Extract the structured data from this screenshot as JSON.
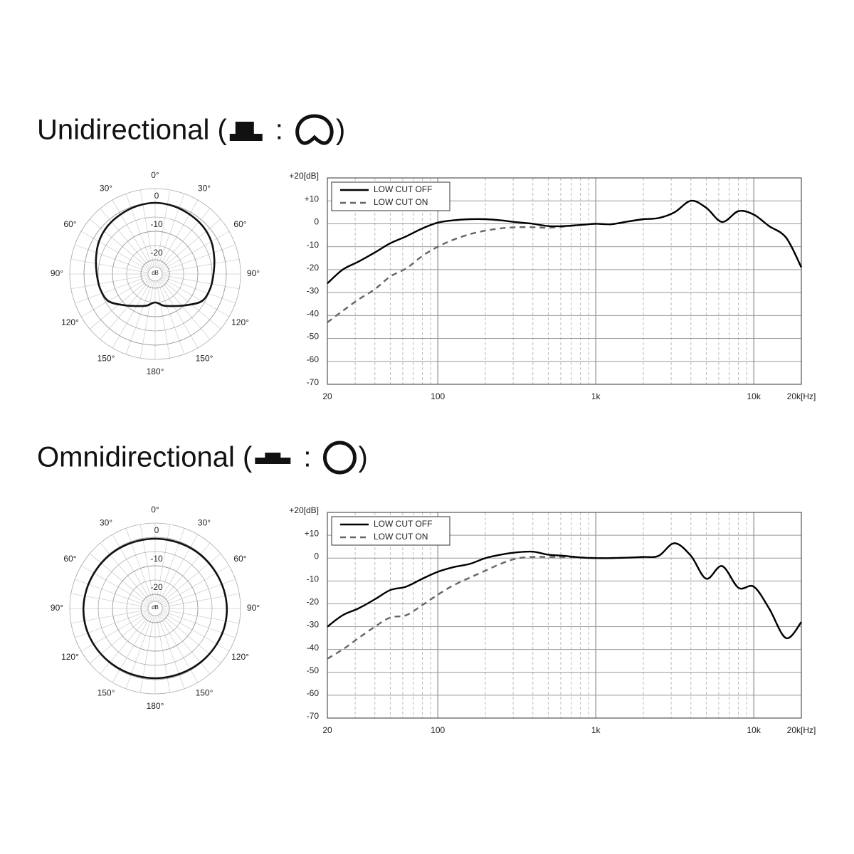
{
  "headings": [
    {
      "text": "Unidirectional (",
      "separator": ":",
      "close": ")"
    },
    {
      "text": "Omnidirectional (",
      "separator": ":",
      "close": ")"
    }
  ],
  "chart_data": [
    {
      "type": "polar",
      "rlim": [
        -25,
        5
      ],
      "rticks": [
        0,
        -10,
        -20
      ],
      "rminor": [
        5,
        -5,
        -15
      ],
      "runit": "dB",
      "spoke_step": 10,
      "angle_ticks": [
        {
          "value": 0,
          "label": "0°"
        },
        {
          "value": 30,
          "label": "30°"
        },
        {
          "value": 60,
          "label": "60°"
        },
        {
          "value": 90,
          "label": "90°"
        },
        {
          "value": 120,
          "label": "120°"
        },
        {
          "value": 150,
          "label": "150°"
        },
        {
          "value": 180,
          "label": "180°"
        },
        {
          "value": 210,
          "label": "150°"
        },
        {
          "value": 240,
          "label": "120°"
        },
        {
          "value": 270,
          "label": "90°"
        },
        {
          "value": 300,
          "label": "60°"
        },
        {
          "value": 330,
          "label": "30°"
        }
      ],
      "angles": [
        0,
        15,
        30,
        45,
        60,
        75,
        90,
        105,
        120,
        135,
        150,
        165,
        180,
        195,
        210,
        225,
        240,
        255,
        270,
        285,
        300,
        315,
        330,
        345
      ],
      "values": [
        0,
        -0.3,
        -0.8,
        -1.3,
        -2.2,
        -3.5,
        -4.5,
        -5,
        -6,
        -9.5,
        -12,
        -13.5,
        -15,
        -13.5,
        -12,
        -9.5,
        -6,
        -5,
        -4.5,
        -3.5,
        -2.2,
        -1.3,
        -0.8,
        -0.3
      ],
      "color": "#111111"
    },
    {
      "type": "line",
      "xscale": "log",
      "xlim": [
        20,
        20000
      ],
      "ylim": [
        -70,
        20
      ],
      "xticks": [
        20,
        100,
        {
          "value": 1000,
          "label": "1k"
        },
        {
          "value": 10000,
          "label": "10k"
        },
        {
          "value": 20000,
          "label": "20k[Hz]"
        }
      ],
      "xmajor": [
        100,
        1000,
        10000
      ],
      "xminor": [
        30,
        40,
        50,
        60,
        70,
        80,
        90,
        200,
        300,
        400,
        500,
        600,
        700,
        800,
        900,
        2000,
        3000,
        4000,
        5000,
        6000,
        7000,
        8000,
        9000
      ],
      "yticks": [
        {
          "value": 20,
          "label": "+20[dB]"
        },
        {
          "value": 10,
          "label": "+10"
        },
        0,
        -10,
        -20,
        -30,
        -40,
        -50,
        -60,
        -70
      ],
      "grid": true,
      "legend": "upper left",
      "x": [
        20,
        25,
        31.5,
        40,
        50,
        63,
        80,
        100,
        125,
        160,
        200,
        250,
        315,
        400,
        500,
        630,
        800,
        1000,
        1250,
        1600,
        2000,
        2500,
        3150,
        4000,
        5000,
        6300,
        8000,
        10000,
        12500,
        16000,
        20000
      ],
      "series": [
        {
          "name": "LOW CUT OFF",
          "color": "#000000",
          "dashed": false,
          "values": [
            -26,
            -20,
            -16.5,
            -12.5,
            -8.5,
            -5.5,
            -2,
            0.5,
            1.5,
            2,
            2,
            1.5,
            0.7,
            0,
            -1,
            -1,
            -0.5,
            0,
            -0.2,
            1,
            2,
            2.5,
            5,
            10,
            7,
            0.8,
            5.5,
            4,
            -1,
            -6,
            -19
          ]
        },
        {
          "name": "LOW CUT ON",
          "color": "#666666",
          "dashed": true,
          "values": [
            -43,
            -38,
            -33,
            -28.5,
            -23,
            -19.5,
            -14,
            -10,
            -7,
            -4.5,
            -3,
            -2,
            -1.5,
            -1.5,
            -1.7,
            -1.2,
            -0.5,
            0,
            -0.2,
            1,
            2,
            2.5,
            5,
            10,
            7,
            0.8,
            5.5,
            4,
            -1,
            -6,
            -19
          ]
        }
      ]
    },
    {
      "type": "polar",
      "rlim": [
        -25,
        5
      ],
      "rticks": [
        0,
        -10,
        -20
      ],
      "rminor": [
        5,
        -5,
        -15
      ],
      "runit": "dB",
      "spoke_step": 10,
      "angle_ticks": [
        {
          "value": 0,
          "label": "0°"
        },
        {
          "value": 30,
          "label": "30°"
        },
        {
          "value": 60,
          "label": "60°"
        },
        {
          "value": 90,
          "label": "90°"
        },
        {
          "value": 120,
          "label": "120°"
        },
        {
          "value": 150,
          "label": "150°"
        },
        {
          "value": 180,
          "label": "180°"
        },
        {
          "value": 210,
          "label": "150°"
        },
        {
          "value": 240,
          "label": "120°"
        },
        {
          "value": 270,
          "label": "90°"
        },
        {
          "value": 300,
          "label": "60°"
        },
        {
          "value": 330,
          "label": "30°"
        }
      ],
      "angles": [
        0,
        15,
        30,
        45,
        60,
        75,
        90,
        105,
        120,
        135,
        150,
        165,
        180,
        195,
        210,
        225,
        240,
        255,
        270,
        285,
        300,
        315,
        330,
        345
      ],
      "values": [
        -0.5,
        -0.5,
        -0.4,
        -0.3,
        -0.2,
        0,
        0.2,
        0.2,
        0,
        -0.2,
        -0.4,
        -0.5,
        -0.5,
        -0.5,
        -0.4,
        -0.2,
        0,
        0.2,
        0.2,
        0,
        -0.2,
        -0.3,
        -0.4,
        -0.5
      ],
      "color": "#111111"
    },
    {
      "type": "line",
      "xscale": "log",
      "xlim": [
        20,
        20000
      ],
      "ylim": [
        -70,
        20
      ],
      "xticks": [
        20,
        100,
        {
          "value": 1000,
          "label": "1k"
        },
        {
          "value": 10000,
          "label": "10k"
        },
        {
          "value": 20000,
          "label": "20k[Hz]"
        }
      ],
      "xmajor": [
        100,
        1000,
        10000
      ],
      "xminor": [
        30,
        40,
        50,
        60,
        70,
        80,
        90,
        200,
        300,
        400,
        500,
        600,
        700,
        800,
        900,
        2000,
        3000,
        4000,
        5000,
        6000,
        7000,
        8000,
        9000
      ],
      "yticks": [
        {
          "value": 20,
          "label": "+20[dB]"
        },
        {
          "value": 10,
          "label": "+10"
        },
        0,
        -10,
        -20,
        -30,
        -40,
        -50,
        -60,
        -70
      ],
      "grid": true,
      "legend": "upper left",
      "x": [
        20,
        25,
        31.5,
        40,
        50,
        63,
        80,
        100,
        125,
        160,
        200,
        250,
        315,
        400,
        500,
        630,
        800,
        1000,
        1250,
        1600,
        2000,
        2500,
        3150,
        4000,
        5000,
        6300,
        8000,
        10000,
        12500,
        16000,
        20000
      ],
      "series": [
        {
          "name": "LOW CUT OFF",
          "color": "#000000",
          "dashed": false,
          "values": [
            -30,
            -25,
            -22,
            -18,
            -14,
            -12.5,
            -9,
            -6,
            -4,
            -2.5,
            0,
            1.5,
            2.5,
            2.8,
            1.5,
            1,
            0.3,
            0,
            0,
            0.2,
            0.5,
            1,
            6.5,
            1,
            -9,
            -3.5,
            -13,
            -12.5,
            -22,
            -35,
            -28
          ]
        },
        {
          "name": "LOW CUT ON",
          "color": "#666666",
          "dashed": true,
          "values": [
            -44,
            -40,
            -35,
            -30,
            -26,
            -25,
            -20.5,
            -16,
            -12,
            -8.5,
            -5.5,
            -2.5,
            -0.2,
            0.5,
            0.5,
            0.5,
            0.3,
            0,
            0,
            0.2,
            0.5,
            1,
            6.5,
            1,
            -9,
            -3.5,
            -13,
            -12.5,
            -22,
            -35,
            -28
          ]
        }
      ]
    }
  ]
}
